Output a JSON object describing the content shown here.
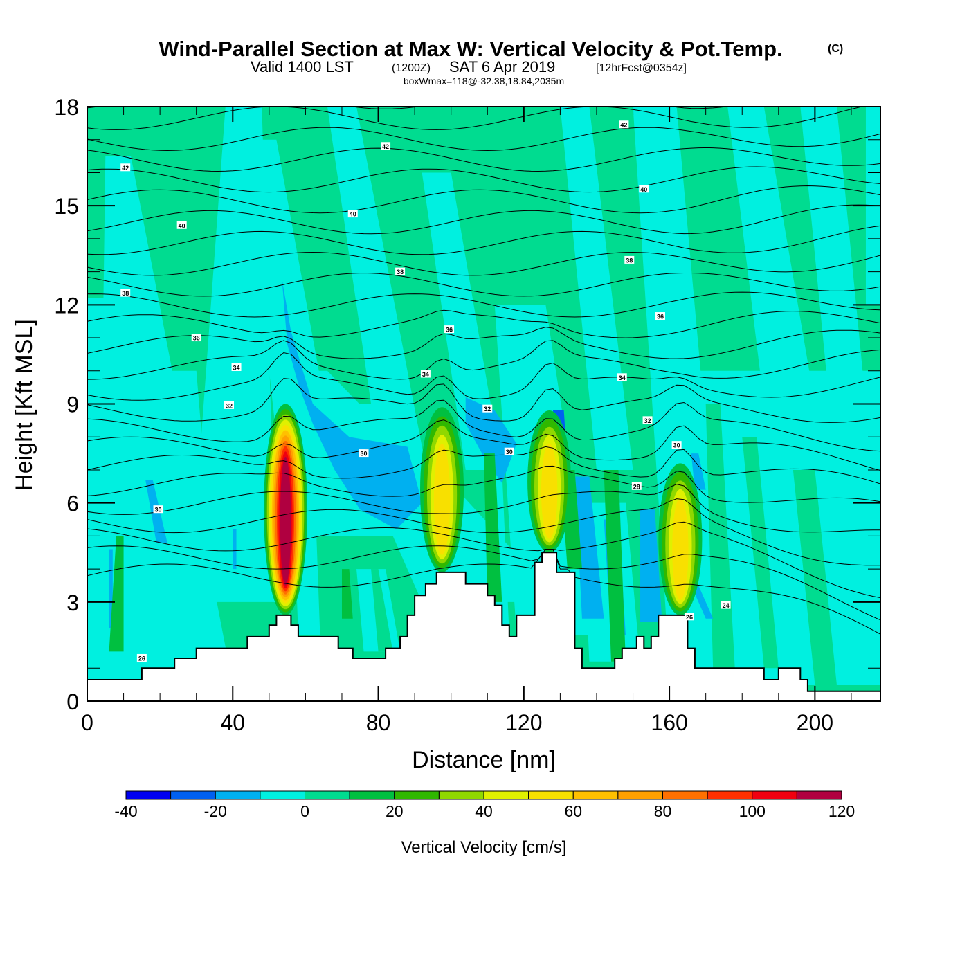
{
  "chart_data": {
    "type": "heatmap",
    "title": "Wind-Parallel Section at Max W: Vertical Velocity & Pot.Temp.",
    "title_mark": "(C)",
    "subtitle": {
      "prefix": "Valid 1400 LST",
      "utc": "(1200Z)",
      "date": "SAT 6 Apr 2019",
      "forecast": "[12hrFcst@0354z]"
    },
    "info": "boxWmax=118@-32.38,18.84,2035m",
    "xlabel": "Distance [nm]",
    "ylabel": "Height [Kft MSL]",
    "xlim": [
      0,
      218
    ],
    "ylim": [
      0,
      18
    ],
    "xticks": [
      "0",
      "40",
      "80",
      "120",
      "160",
      "200"
    ],
    "xtick_values": [
      0,
      40,
      80,
      120,
      160,
      200
    ],
    "yticks": [
      "0",
      "3",
      "6",
      "9",
      "12",
      "15",
      "18"
    ],
    "ytick_values": [
      0,
      3,
      6,
      9,
      12,
      15,
      18
    ],
    "colorbar": {
      "title": "Vertical Velocity [cm/s]",
      "bounds": [
        -40,
        -30,
        -20,
        -10,
        0,
        10,
        20,
        30,
        40,
        50,
        60,
        70,
        80,
        90,
        100,
        110,
        120
      ],
      "labels": [
        "-40",
        "-20",
        "0",
        "20",
        "40",
        "60",
        "80",
        "100",
        "120"
      ],
      "label_values": [
        -40,
        -20,
        0,
        20,
        40,
        60,
        80,
        100,
        120
      ],
      "colors": [
        "#0000f0",
        "#0060f0",
        "#00b0f0",
        "#00f0e0",
        "#00dc90",
        "#00c040",
        "#30b800",
        "#90d800",
        "#e0f000",
        "#f8e000",
        "#ffc000",
        "#ffa000",
        "#ff7000",
        "#ff3000",
        "#f00010",
        "#b00040"
      ],
      "orientation": "horizontal",
      "placement": "bottom"
    },
    "background_value": 5,
    "terrain": {
      "description_units": "nm, kft",
      "points": [
        [
          0,
          0.65
        ],
        [
          15,
          0.65
        ],
        [
          15,
          1.0
        ],
        [
          24,
          1.0
        ],
        [
          24,
          1.3
        ],
        [
          30,
          1.3
        ],
        [
          30,
          1.6
        ],
        [
          44,
          1.6
        ],
        [
          44,
          1.95
        ],
        [
          50,
          1.95
        ],
        [
          50,
          2.3
        ],
        [
          52,
          2.3
        ],
        [
          52,
          2.6
        ],
        [
          56,
          2.6
        ],
        [
          56,
          2.3
        ],
        [
          58,
          2.3
        ],
        [
          58,
          1.95
        ],
        [
          69,
          1.95
        ],
        [
          69,
          1.6
        ],
        [
          73,
          1.6
        ],
        [
          73,
          1.3
        ],
        [
          82,
          1.3
        ],
        [
          82,
          1.6
        ],
        [
          86,
          1.6
        ],
        [
          86,
          1.95
        ],
        [
          88,
          1.95
        ],
        [
          88,
          2.6
        ],
        [
          90,
          2.6
        ],
        [
          90,
          3.2
        ],
        [
          93,
          3.2
        ],
        [
          93,
          3.55
        ],
        [
          96,
          3.55
        ],
        [
          96,
          3.9
        ],
        [
          104,
          3.9
        ],
        [
          104,
          3.55
        ],
        [
          110,
          3.55
        ],
        [
          110,
          3.2
        ],
        [
          112,
          3.2
        ],
        [
          112,
          2.9
        ],
        [
          114,
          2.9
        ],
        [
          114,
          2.3
        ],
        [
          116,
          2.3
        ],
        [
          116,
          1.95
        ],
        [
          118,
          1.95
        ],
        [
          118,
          2.6
        ],
        [
          123,
          2.6
        ],
        [
          123,
          4.2
        ],
        [
          125,
          4.2
        ],
        [
          125,
          4.5
        ],
        [
          129,
          4.5
        ],
        [
          129,
          3.9
        ],
        [
          134,
          3.9
        ],
        [
          134,
          1.6
        ],
        [
          136,
          1.6
        ],
        [
          136,
          1.0
        ],
        [
          145,
          1.0
        ],
        [
          145,
          1.3
        ],
        [
          147,
          1.3
        ],
        [
          147,
          1.6
        ],
        [
          151,
          1.6
        ],
        [
          151,
          1.95
        ],
        [
          153,
          1.95
        ],
        [
          153,
          1.6
        ],
        [
          155,
          1.6
        ],
        [
          155,
          1.95
        ],
        [
          157,
          1.95
        ],
        [
          157,
          2.6
        ],
        [
          165,
          2.6
        ],
        [
          165,
          1.6
        ],
        [
          167,
          1.6
        ],
        [
          167,
          1.0
        ],
        [
          186,
          1.0
        ],
        [
          186,
          0.65
        ],
        [
          190,
          0.65
        ],
        [
          190,
          1.0
        ],
        [
          196,
          1.0
        ],
        [
          196,
          0.65
        ],
        [
          198,
          0.65
        ],
        [
          198,
          0.3
        ],
        [
          218,
          0.3
        ]
      ]
    },
    "cores": [
      {
        "name": "core-55nm",
        "x_center": 54.5,
        "base_kft": 2.6,
        "top_kft": 9.0,
        "peak_value": 118
      },
      {
        "name": "core-97nm",
        "x_center": 97.5,
        "base_kft": 3.9,
        "top_kft": 8.9,
        "peak_value": 55
      },
      {
        "name": "core-127nm",
        "x_center": 127.0,
        "base_kft": 4.5,
        "top_kft": 8.8,
        "peak_value": 55
      },
      {
        "name": "core-163nm",
        "x_center": 163.0,
        "base_kft": 2.6,
        "top_kft": 7.2,
        "peak_value": 55
      }
    ],
    "isentropes": {
      "variable": "Potential Temperature",
      "labels": [
        {
          "text": "42",
          "x": 10.5,
          "y": 16.15
        },
        {
          "text": "42",
          "x": 82,
          "y": 16.8
        },
        {
          "text": "42",
          "x": 147.5,
          "y": 17.45
        },
        {
          "text": "40",
          "x": 26,
          "y": 14.4
        },
        {
          "text": "40",
          "x": 73,
          "y": 14.75
        },
        {
          "text": "40",
          "x": 153,
          "y": 15.5
        },
        {
          "text": "38",
          "x": 10.5,
          "y": 12.35
        },
        {
          "text": "38",
          "x": 86,
          "y": 13.0
        },
        {
          "text": "38",
          "x": 149,
          "y": 13.35
        },
        {
          "text": "36",
          "x": 30,
          "y": 11.0
        },
        {
          "text": "36",
          "x": 99.5,
          "y": 11.25
        },
        {
          "text": "36",
          "x": 157.5,
          "y": 11.65
        },
        {
          "text": "34",
          "x": 41,
          "y": 10.1
        },
        {
          "text": "34",
          "x": 93,
          "y": 9.9
        },
        {
          "text": "34",
          "x": 147,
          "y": 9.8
        },
        {
          "text": "32",
          "x": 39,
          "y": 8.95
        },
        {
          "text": "32",
          "x": 110,
          "y": 8.85
        },
        {
          "text": "32",
          "x": 154,
          "y": 8.5
        },
        {
          "text": "30",
          "x": 76,
          "y": 7.5
        },
        {
          "text": "30",
          "x": 116,
          "y": 7.55
        },
        {
          "text": "30",
          "x": 162,
          "y": 7.75
        },
        {
          "text": "30",
          "x": 19.5,
          "y": 5.8
        },
        {
          "text": "28",
          "x": 151,
          "y": 6.5
        },
        {
          "text": "26",
          "x": 15,
          "y": 1.3
        },
        {
          "text": "26",
          "x": 165.5,
          "y": 2.55
        },
        {
          "text": "24",
          "x": 175.5,
          "y": 2.9
        }
      ]
    }
  }
}
